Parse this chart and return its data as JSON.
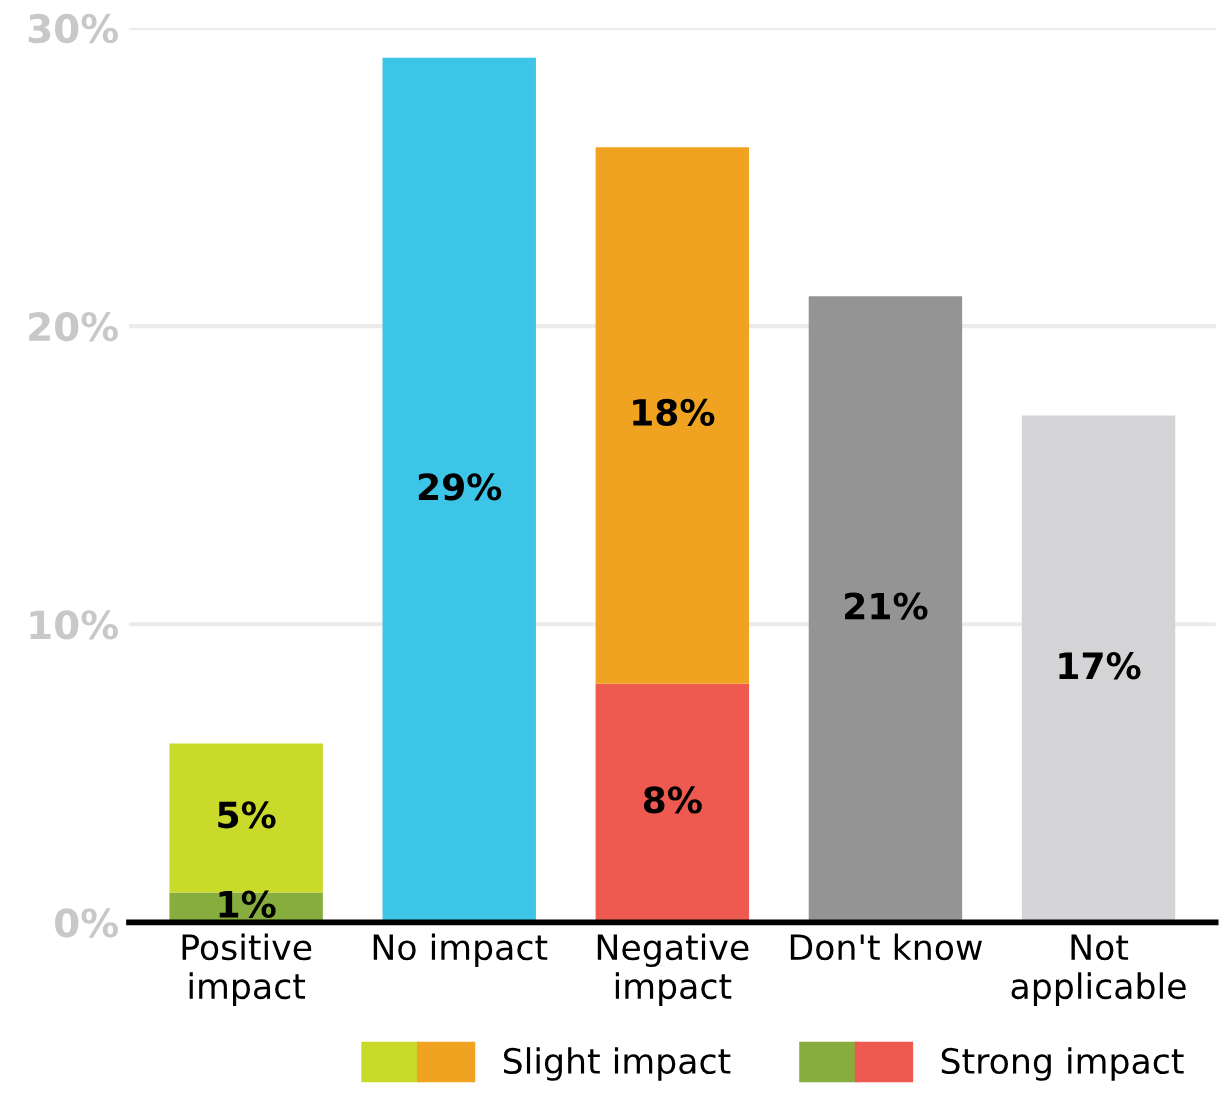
{
  "chart_data": {
    "type": "bar",
    "stacked": true,
    "categories": [
      "Positive\nimpact",
      "No impact",
      "Negative\nimpact",
      "Don't know",
      "Not\napplicable"
    ],
    "series": [
      {
        "name": "Strong impact",
        "colors": [
          "#86ad3d",
          null,
          "#ef5a50",
          null,
          null
        ],
        "values": [
          1,
          null,
          8,
          null,
          null
        ],
        "value_labels": [
          "1%",
          null,
          "8%",
          null,
          null
        ]
      },
      {
        "name": "Slight impact",
        "colors": [
          "#c9da2b",
          null,
          "#f0a321",
          null,
          null
        ],
        "values": [
          5,
          null,
          18,
          null,
          null
        ],
        "value_labels": [
          "5%",
          null,
          "18%",
          null,
          null
        ]
      },
      {
        "colors": [
          null,
          "#3dc5e8",
          null,
          "#949494",
          "#d4d4d6"
        ],
        "values": [
          null,
          29,
          null,
          21,
          17
        ],
        "value_labels": [
          null,
          "29%",
          null,
          "21%",
          "17%"
        ]
      }
    ],
    "ylim": [
      0,
      30
    ],
    "yticks": [
      {
        "value": 0,
        "label": "0%"
      },
      {
        "value": 10,
        "label": "10%"
      },
      {
        "value": 20,
        "label": "20%"
      },
      {
        "value": 30,
        "label": "30%"
      }
    ],
    "grid": "y",
    "legend": "bottom right"
  }
}
